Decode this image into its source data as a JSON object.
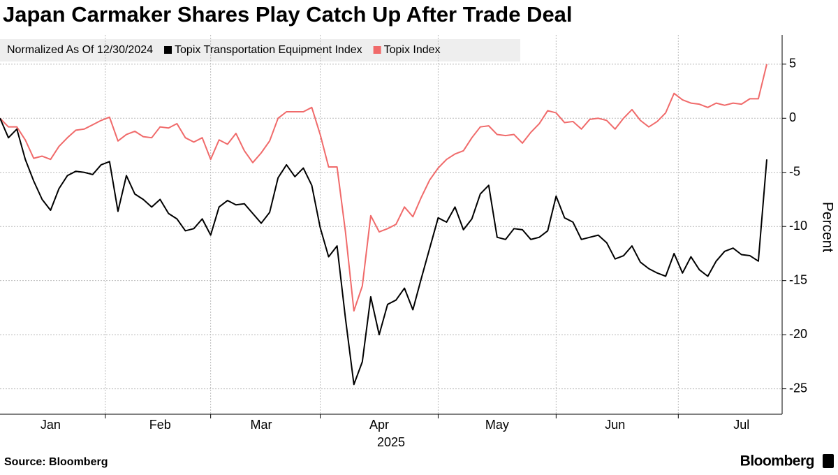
{
  "chart_data": {
    "type": "line",
    "title": "Japan Carmaker Shares Play Catch Up After Trade Deal",
    "legend_title": "Normalized As Of 12/30/2024",
    "y_label": "Percent",
    "x_year_label": "2025",
    "source": "Source: Bloomberg",
    "brand": "Bloomberg",
    "categories": [
      null,
      null,
      null,
      null,
      null,
      null,
      "Jan",
      null,
      null,
      null,
      null,
      null,
      null,
      null,
      null,
      null,
      null,
      null,
      null,
      "Feb",
      null,
      null,
      null,
      null,
      null,
      null,
      null,
      null,
      null,
      null,
      null,
      "Mar",
      null,
      null,
      null,
      null,
      null,
      null,
      null,
      null,
      null,
      null,
      null,
      null,
      null,
      "Apr",
      null,
      null,
      null,
      null,
      null,
      null,
      null,
      null,
      null,
      null,
      null,
      null,
      null,
      "May",
      null,
      null,
      null,
      null,
      null,
      null,
      null,
      null,
      null,
      null,
      null,
      null,
      null,
      "Jun",
      null,
      null,
      null,
      null,
      null,
      null,
      null,
      null,
      null,
      null,
      null,
      null,
      null,
      null,
      "Jul",
      null,
      null,
      null
    ],
    "series": [
      {
        "name": "Topix Transportation Equipment Index",
        "color": "#000000",
        "values": [
          0,
          -1.8,
          -1.0,
          -3.8,
          -5.8,
          -7.5,
          -8.5,
          -6.5,
          -5.3,
          -4.9,
          -5.0,
          -5.2,
          -4.3,
          -4.0,
          -8.6,
          -5.3,
          -7.0,
          -7.5,
          -8.2,
          -7.5,
          -8.8,
          -9.3,
          -10.4,
          -10.2,
          -9.3,
          -10.8,
          -8.2,
          -7.6,
          -8.0,
          -7.9,
          -8.8,
          -9.7,
          -8.7,
          -5.5,
          -4.3,
          -5.4,
          -4.6,
          -6.2,
          -10.1,
          -12.8,
          -11.8,
          -18.5,
          -24.6,
          -22.5,
          -16.5,
          -20.0,
          -17.2,
          -16.8,
          -15.7,
          -17.7,
          -14.8,
          -12.0,
          -9.2,
          -9.6,
          -8.2,
          -10.3,
          -9.3,
          -7.0,
          -6.2,
          -11.0,
          -11.2,
          -10.2,
          -10.3,
          -11.2,
          -11.0,
          -10.4,
          -7.2,
          -9.2,
          -9.6,
          -11.2,
          -11.0,
          -10.8,
          -11.5,
          -13.0,
          -12.7,
          -11.8,
          -13.3,
          -13.9,
          -14.3,
          -14.6,
          -12.5,
          -14.3,
          -12.8,
          -14.0,
          -14.6,
          -13.2,
          -12.3,
          -12.0,
          -12.6,
          -12.7,
          -13.2,
          -3.8
        ]
      },
      {
        "name": "Topix Index",
        "color": "#f06a6a",
        "values": [
          0,
          -0.8,
          -0.8,
          -2.0,
          -3.7,
          -3.5,
          -3.8,
          -2.6,
          -1.8,
          -1.1,
          -1.0,
          -0.6,
          -0.2,
          0.1,
          -2.1,
          -1.5,
          -1.2,
          -1.7,
          -1.8,
          -0.8,
          -0.9,
          -0.5,
          -1.8,
          -2.2,
          -1.8,
          -3.8,
          -2.0,
          -2.4,
          -1.4,
          -3.0,
          -4.1,
          -3.2,
          -2.1,
          0.0,
          0.6,
          0.6,
          0.6,
          1.0,
          -1.5,
          -4.5,
          -4.5,
          -10.5,
          -17.8,
          -15.5,
          -9.0,
          -10.5,
          -10.2,
          -9.8,
          -8.2,
          -9.1,
          -7.3,
          -5.7,
          -4.6,
          -3.8,
          -3.3,
          -3.0,
          -1.8,
          -0.8,
          -0.7,
          -1.5,
          -1.6,
          -1.5,
          -2.3,
          -1.3,
          -0.5,
          0.7,
          0.5,
          -0.4,
          -0.3,
          -1.0,
          -0.1,
          0.0,
          -0.2,
          -1.0,
          0.0,
          0.8,
          -0.2,
          -0.8,
          -0.3,
          0.5,
          2.3,
          1.7,
          1.4,
          1.3,
          1.0,
          1.4,
          1.2,
          1.4,
          1.3,
          1.8,
          1.8,
          5.0
        ]
      }
    ],
    "ylim": [
      -27.35,
      7.7
    ],
    "yticks": [
      -25,
      -20,
      -15,
      -10,
      -5,
      0,
      5
    ],
    "grid": true
  }
}
